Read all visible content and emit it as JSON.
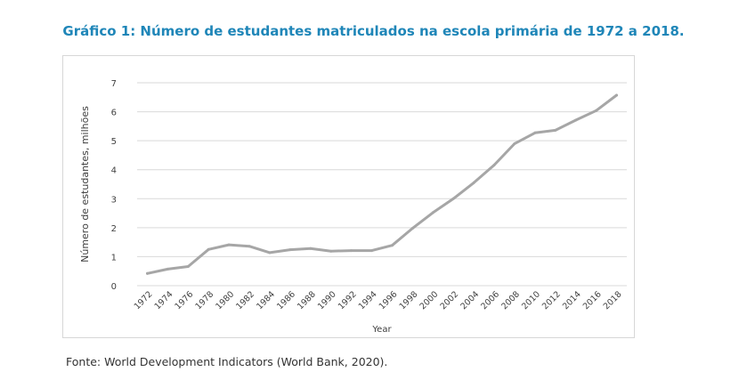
{
  "title": "Gráfico 1: Número de estudantes matriculados na escola primária de 1972 a 2018.",
  "source": "Fonte: World Development Indicators (World Bank, 2020).",
  "colors": {
    "title": "#1f86b8",
    "line": "#a6a6a6",
    "grid": "#d9d9d9",
    "frame": "#d7d7d7",
    "text": "#404040"
  },
  "chart_data": {
    "type": "line",
    "title": "Gráfico 1: Número de estudantes matriculados na escola primária de 1972 a 2018.",
    "xlabel": "Year",
    "ylabel": "Número de estudantes, milhões",
    "ylim": [
      0,
      7
    ],
    "yticks": [
      0,
      1,
      2,
      3,
      4,
      5,
      6,
      7
    ],
    "grid": "horizontal",
    "legend": "none",
    "x": [
      "1972",
      "1974",
      "1976",
      "1978",
      "1980",
      "1982",
      "1984",
      "1986",
      "1988",
      "1990",
      "1992",
      "1994",
      "1996",
      "1998",
      "2000",
      "2002",
      "2004",
      "2006",
      "2008",
      "2010",
      "2012",
      "2014",
      "2016",
      "2018"
    ],
    "series": [
      {
        "values": [
          0.42,
          0.57,
          0.66,
          1.25,
          1.41,
          1.36,
          1.14,
          1.24,
          1.28,
          1.19,
          1.21,
          1.21,
          1.39,
          1.98,
          2.52,
          3.0,
          3.55,
          4.16,
          4.9,
          5.27,
          5.36,
          5.71,
          6.04,
          6.57
        ]
      }
    ]
  }
}
